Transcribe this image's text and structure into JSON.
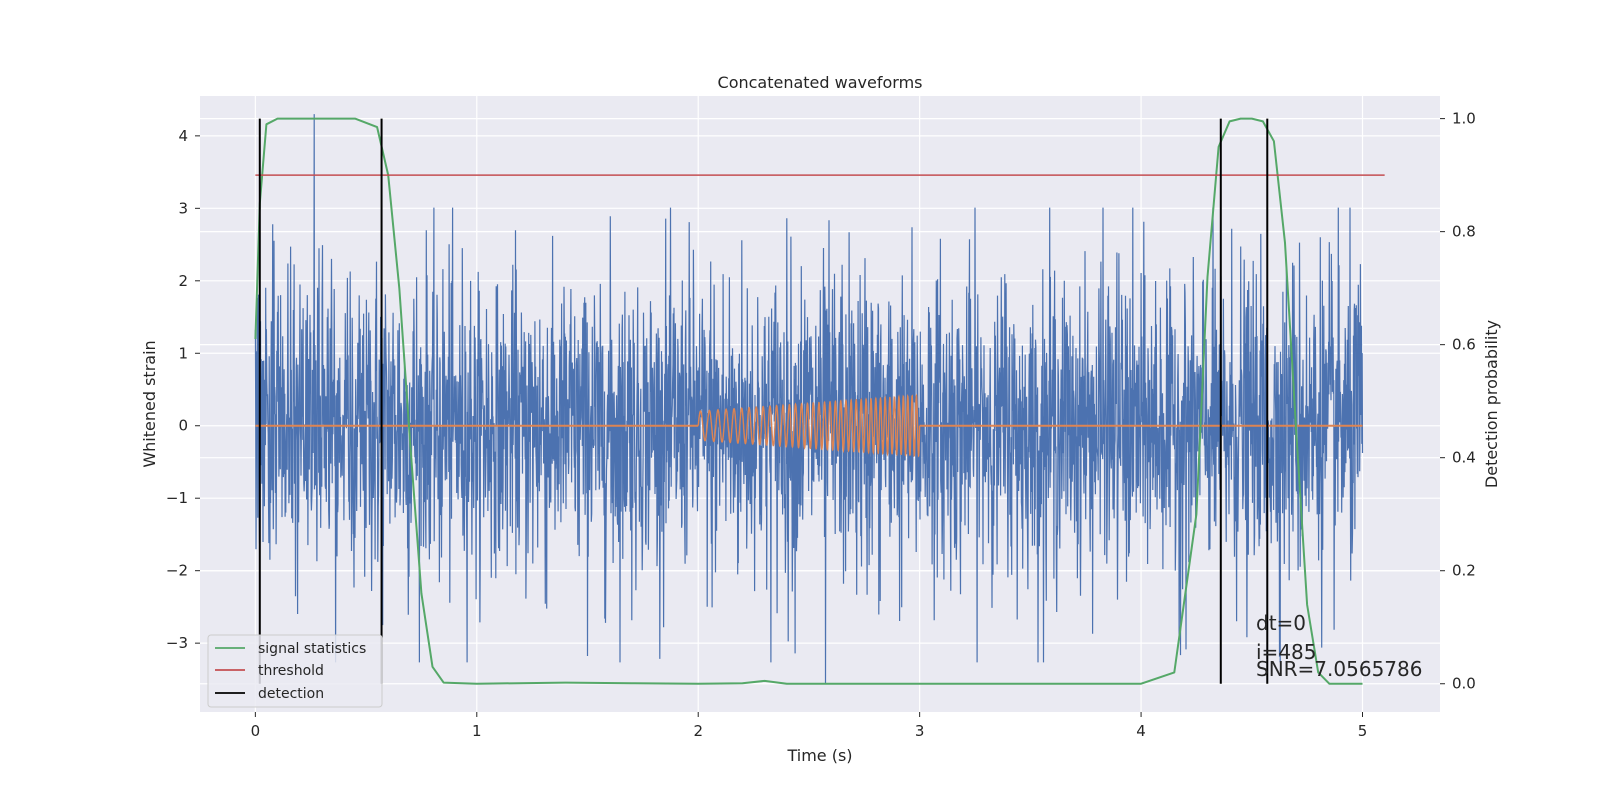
{
  "chart_data": {
    "type": "line",
    "title": "Concatenated waveforms",
    "xlabel": "Time (s)",
    "ylabel_left": "Whitened strain",
    "ylabel_right": "Detection probability",
    "xlim": [
      -0.25,
      5.35
    ],
    "ylim_left": [
      -3.95,
      4.55
    ],
    "ylim_right": [
      -0.05,
      1.04
    ],
    "xticks": [
      "0",
      "1",
      "2",
      "3",
      "4",
      "5"
    ],
    "yticks_left": [
      "4",
      "3",
      "2",
      "1",
      "0",
      "−1",
      "−2",
      "−3"
    ],
    "yticks_right": [
      "1.0",
      "0.8",
      "0.6",
      "0.4",
      "0.2",
      "0.0"
    ],
    "grid": true,
    "legend_position": "lower-left",
    "legend": [
      {
        "label": "signal statistics",
        "color": "#55a868"
      },
      {
        "label": "threshold",
        "color": "#c44e52"
      },
      {
        "label": "detection",
        "color": "#000000"
      }
    ],
    "series": [
      {
        "role": "noise",
        "color": "#4c72b0",
        "x_range": [
          0,
          5
        ],
        "approx_amplitude": 2.5,
        "peak_max": 4.3,
        "peak_min": -3.55
      },
      {
        "role": "injected-chirp",
        "color": "#dd8452",
        "x_range": [
          2,
          3
        ],
        "amplitude_start": 0.2,
        "amplitude_end": 0.42,
        "baseline": 0
      },
      {
        "name": "signal statistics",
        "color": "#55a868",
        "axis": "right",
        "x": [
          0,
          0.02,
          0.05,
          0.1,
          0.45,
          0.55,
          0.6,
          0.65,
          0.7,
          0.75,
          0.8,
          0.85,
          1.0,
          1.4,
          1.7,
          2.0,
          2.2,
          2.3,
          2.4,
          3.0,
          4.0,
          4.15,
          4.25,
          4.3,
          4.35,
          4.4,
          4.45,
          4.5,
          4.55,
          4.6,
          4.65,
          4.7,
          4.75,
          4.8,
          4.85,
          5.0
        ],
        "y": [
          0.61,
          0.85,
          0.99,
          1.0,
          1.0,
          0.985,
          0.9,
          0.7,
          0.42,
          0.16,
          0.03,
          0.002,
          0.0,
          0.002,
          0.001,
          0.0,
          0.001,
          0.005,
          0.0,
          0.0,
          0.0,
          0.02,
          0.3,
          0.72,
          0.95,
          0.995,
          1.0,
          1.0,
          0.995,
          0.96,
          0.78,
          0.45,
          0.14,
          0.02,
          0.0,
          0.0
        ]
      },
      {
        "name": "threshold",
        "color": "#c44e52",
        "axis": "right",
        "x": [
          0,
          5.1
        ],
        "y": [
          0.9,
          0.9
        ]
      },
      {
        "name": "detection",
        "color": "#000000",
        "type": "vlines",
        "x": [
          0.02,
          0.57,
          4.36,
          4.57
        ],
        "y_range": [
          0.0,
          1.0
        ]
      }
    ],
    "annotations": [
      "dt=0",
      "i=485",
      "SNR=7.0565786"
    ]
  }
}
